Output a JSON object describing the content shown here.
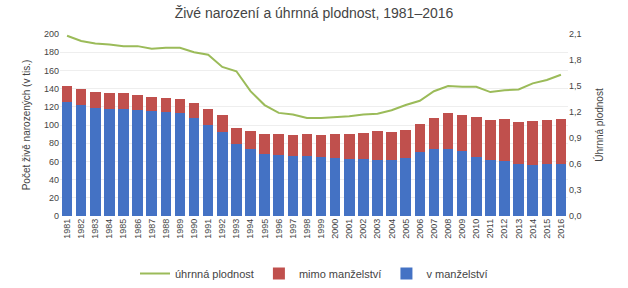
{
  "chart_data": {
    "type": "bar",
    "title": "Živé narození a úhrnná plodnost, 1981–2016",
    "ylabel": "Počet živě narozených (v tis.)",
    "y2label": "Úhrnná plodnost",
    "categories": [
      "1981",
      "1982",
      "1983",
      "1984",
      "1985",
      "1986",
      "1987",
      "1988",
      "1989",
      "1990",
      "1991",
      "1992",
      "1993",
      "1994",
      "1995",
      "1996",
      "1997",
      "1998",
      "1999",
      "2000",
      "2001",
      "2002",
      "2003",
      "2004",
      "2005",
      "2006",
      "2007",
      "2008",
      "2009",
      "2010",
      "2011",
      "2012",
      "2013",
      "2014",
      "2015",
      "2016"
    ],
    "series": [
      {
        "name": "v manželství",
        "type": "bar",
        "color": "#4472C4",
        "values": [
          125,
          122,
          119,
          118,
          118,
          116,
          115,
          114,
          113,
          108,
          100,
          92,
          79,
          74,
          68,
          67,
          66,
          66,
          65,
          64,
          63,
          63,
          62,
          62,
          64,
          70,
          74,
          74,
          71,
          65,
          62,
          60,
          57,
          56,
          57,
          57
        ]
      },
      {
        "name": "mimo manželství",
        "type": "bar",
        "color": "#C0504D",
        "values": [
          18,
          18,
          17,
          17,
          17,
          17,
          16,
          16,
          16,
          16,
          18,
          19,
          18,
          19,
          22,
          23,
          23,
          24,
          24,
          26,
          27,
          28,
          31,
          30,
          31,
          31,
          34,
          39,
          40,
          44,
          44,
          47,
          46,
          48,
          49,
          50
        ]
      },
      {
        "name": "úhrnná plodnost",
        "type": "line",
        "axis": "y2",
        "color": "#9BBB59",
        "values": [
          2.08,
          2.02,
          1.99,
          1.98,
          1.96,
          1.96,
          1.93,
          1.94,
          1.94,
          1.89,
          1.86,
          1.72,
          1.67,
          1.44,
          1.28,
          1.19,
          1.17,
          1.13,
          1.13,
          1.14,
          1.15,
          1.17,
          1.18,
          1.22,
          1.28,
          1.33,
          1.44,
          1.5,
          1.49,
          1.49,
          1.43,
          1.45,
          1.46,
          1.53,
          1.57,
          1.63
        ]
      }
    ],
    "stacked": true,
    "ylim": [
      0,
      200
    ],
    "yticks": [
      0,
      20,
      40,
      60,
      80,
      100,
      120,
      140,
      160,
      180,
      200
    ],
    "y2lim": [
      0.0,
      2.1
    ],
    "y2ticks": [
      {
        "value": 0.0,
        "label": "0,0"
      },
      {
        "value": 0.3,
        "label": "0,3"
      },
      {
        "value": 0.6,
        "label": "0,6"
      },
      {
        "value": 0.9,
        "label": "0,9"
      },
      {
        "value": 1.2,
        "label": "1,2"
      },
      {
        "value": 1.5,
        "label": "1,5"
      },
      {
        "value": 1.8,
        "label": "1,8"
      },
      {
        "value": 2.1,
        "label": "2,1"
      }
    ],
    "grid": true,
    "legend": "bottom"
  }
}
